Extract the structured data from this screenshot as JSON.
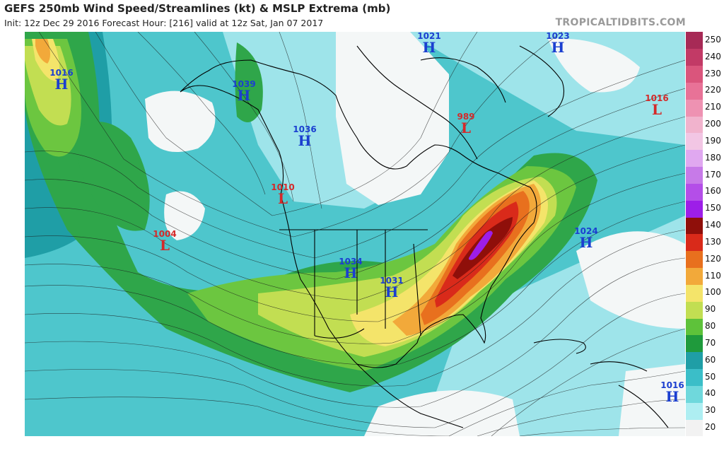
{
  "header": {
    "title": "GEFS 250mb Wind Speed/Streamlines (kt) & MSLP Extrema (mb)",
    "subtitle": "Init: 12z Dec 29 2016   Forecast Hour: [216]   valid at 12z Sat, Jan 07 2017",
    "brand": "TROPICALTIDBITS.COM"
  },
  "colorbar": {
    "levels": [
      {
        "label": "20",
        "color": "#f2f2f2"
      },
      {
        "label": "30",
        "color": "#aeeef2"
      },
      {
        "label": "40",
        "color": "#6fd8dc"
      },
      {
        "label": "50",
        "color": "#3bbec8"
      },
      {
        "label": "60",
        "color": "#1f9ea6"
      },
      {
        "label": "70",
        "color": "#1f9a3c"
      },
      {
        "label": "80",
        "color": "#5ec23a"
      },
      {
        "label": "90",
        "color": "#c2de52"
      },
      {
        "label": "100",
        "color": "#f4e46a"
      },
      {
        "label": "110",
        "color": "#f2a93a"
      },
      {
        "label": "120",
        "color": "#e8701e"
      },
      {
        "label": "130",
        "color": "#d92a1a"
      },
      {
        "label": "140",
        "color": "#8f0f0a"
      },
      {
        "label": "150",
        "color": "#9d1ee8"
      },
      {
        "label": "160",
        "color": "#b44ee8"
      },
      {
        "label": "170",
        "color": "#c77ae8"
      },
      {
        "label": "180",
        "color": "#e0a8f0"
      },
      {
        "label": "190",
        "color": "#f2c6e4"
      },
      {
        "label": "200",
        "color": "#f1b3cd"
      },
      {
        "label": "210",
        "color": "#ee92b2"
      },
      {
        "label": "220",
        "color": "#e87297"
      },
      {
        "label": "230",
        "color": "#da557c"
      },
      {
        "label": "240",
        "color": "#c23a66"
      },
      {
        "label": "250",
        "color": "#a72a56"
      }
    ]
  },
  "pressure_centers": [
    {
      "type": "H",
      "value": "1016"
    },
    {
      "type": "H",
      "value": "1039"
    },
    {
      "type": "H",
      "value": "1021"
    },
    {
      "type": "H",
      "value": "1023"
    },
    {
      "type": "L",
      "value": "1016"
    },
    {
      "type": "H",
      "value": "1036"
    },
    {
      "type": "L",
      "value": "989"
    },
    {
      "type": "L",
      "value": "1010"
    },
    {
      "type": "L",
      "value": "1004"
    },
    {
      "type": "H",
      "value": "1024"
    },
    {
      "type": "H",
      "value": "1034"
    },
    {
      "type": "H",
      "value": "1031"
    },
    {
      "type": "H",
      "value": "1016"
    }
  ]
}
